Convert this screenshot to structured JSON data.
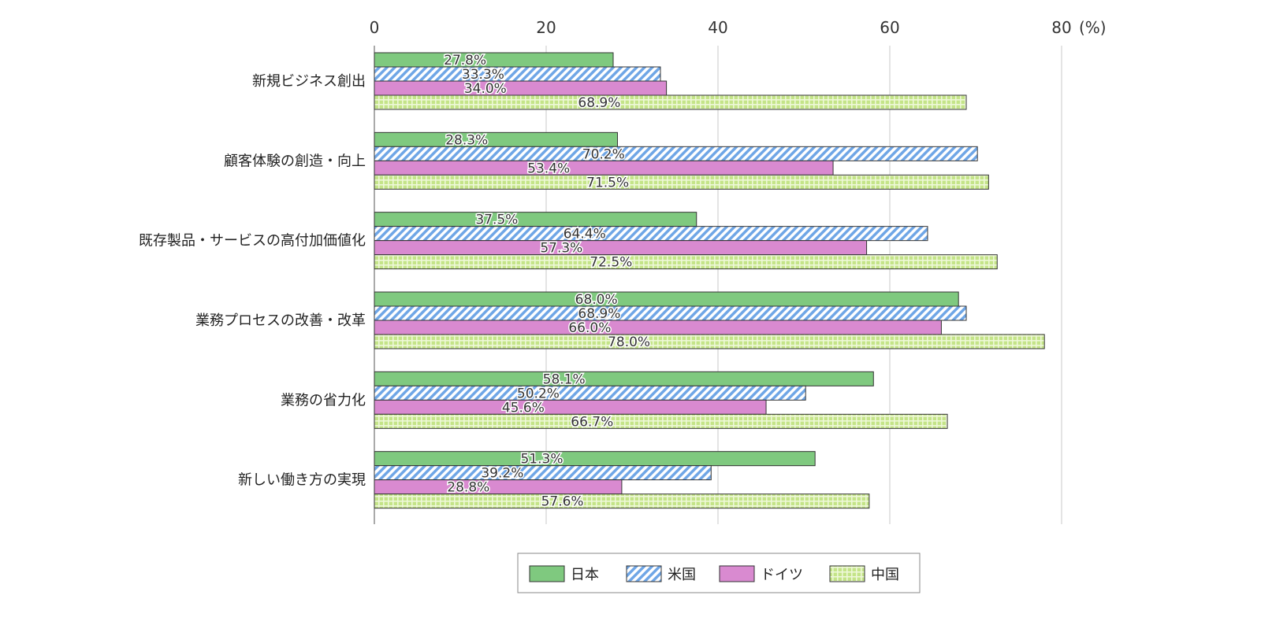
{
  "chart_data": {
    "type": "bar",
    "orientation": "horizontal",
    "unit_label": "(%)",
    "categories": [
      "新規ビジネス創出",
      "顧客体験の創造・向上",
      "既存製品・サービスの高付加価値化",
      "業務プロセスの改善・改革",
      "業務の省力化",
      "新しい働き方の実現"
    ],
    "series": [
      {
        "name": "日本",
        "values": [
          27.8,
          28.3,
          37.5,
          68.0,
          58.1,
          51.3
        ],
        "color": "#7fc97f",
        "pattern": "solid"
      },
      {
        "name": "米国",
        "values": [
          33.3,
          70.2,
          64.4,
          68.9,
          50.2,
          39.2
        ],
        "color": "#8ab4e8",
        "pattern": "diagonal-hatch"
      },
      {
        "name": "ドイツ",
        "values": [
          34.0,
          53.4,
          57.3,
          66.0,
          45.6,
          28.8
        ],
        "color": "#d98ad0",
        "pattern": "solid"
      },
      {
        "name": "中国",
        "values": [
          68.9,
          71.5,
          72.5,
          78.0,
          66.7,
          57.6
        ],
        "color": "#c8e68a",
        "pattern": "grid"
      }
    ],
    "data_labels": [
      [
        "27.8%",
        "33.3%",
        "34.0%",
        "68.9%"
      ],
      [
        "28.3%",
        "70.2%",
        "53.4%",
        "71.5%"
      ],
      [
        "37.5%",
        "64.4%",
        "57.3%",
        "72.5%"
      ],
      [
        "68.0%",
        "68.9%",
        "66.0%",
        "78.0%"
      ],
      [
        "58.1%",
        "50.2%",
        "45.6%",
        "66.7%"
      ],
      [
        "51.3%",
        "39.2%",
        "28.8%",
        "57.6%"
      ]
    ],
    "xlim": [
      0,
      80
    ],
    "x_ticks": [
      0,
      20,
      40,
      60,
      80
    ],
    "x_tick_labels": [
      "0",
      "20",
      "40",
      "60",
      "80"
    ],
    "axis_position": "top",
    "grid": true,
    "legend_position": "bottom-center"
  }
}
